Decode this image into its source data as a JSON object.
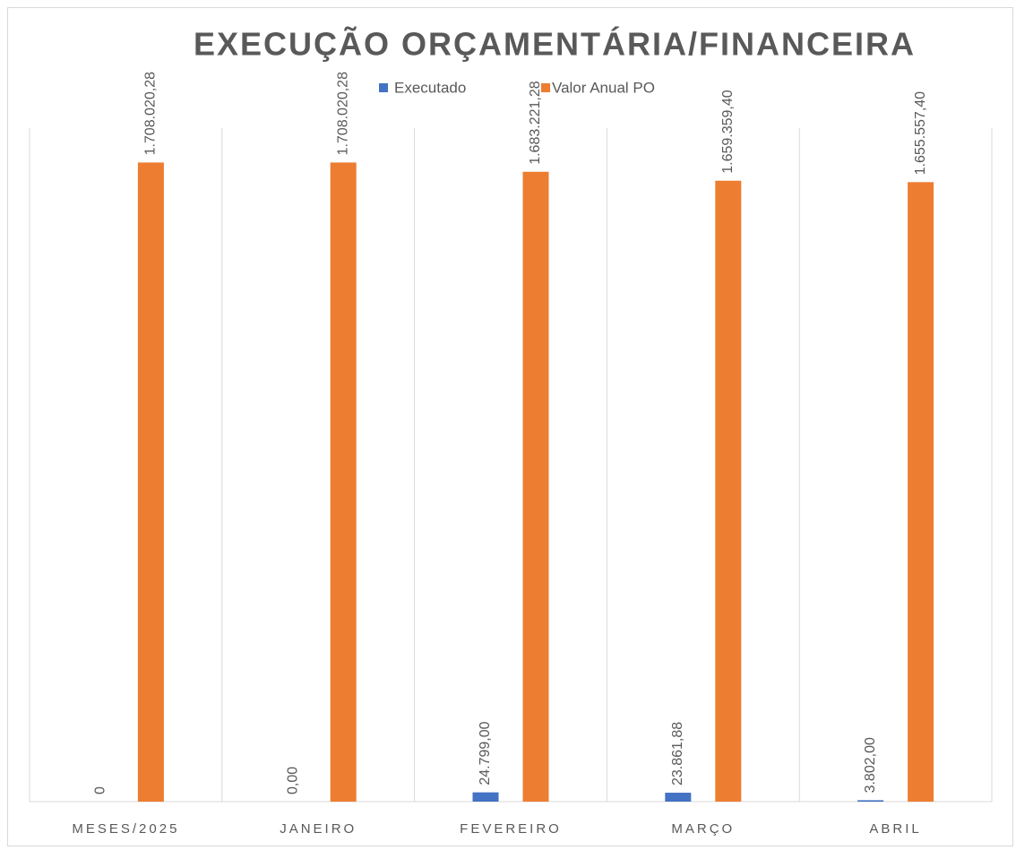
{
  "chart_data": {
    "type": "bar",
    "title": "EXECUÇÃO ORÇAMENTÁRIA/FINANCEIRA",
    "categories": [
      "MESES/2025",
      "JANEIRO",
      "FEVEREIRO",
      "MARÇO",
      "ABRIL"
    ],
    "series": [
      {
        "name": "Executado",
        "color": "#4472c4",
        "values": [
          0,
          0,
          24799,
          23861.88,
          3802
        ],
        "value_labels": [
          "0",
          "0,00",
          "24.799,00",
          "23.861,88",
          "3.802,00"
        ]
      },
      {
        "name": "Valor Anual PO",
        "color": "#ed7d31",
        "values": [
          1708020.28,
          1708020.28,
          1683221.28,
          1659359.4,
          1655557.4
        ],
        "value_labels": [
          "1.708.020,28",
          "1.708.020,28",
          "1.683.221,28",
          "1.659.359,40",
          "1.655.557,40"
        ]
      }
    ],
    "ylim": [
      0,
      1800000
    ],
    "grid": true,
    "legend": "top"
  }
}
